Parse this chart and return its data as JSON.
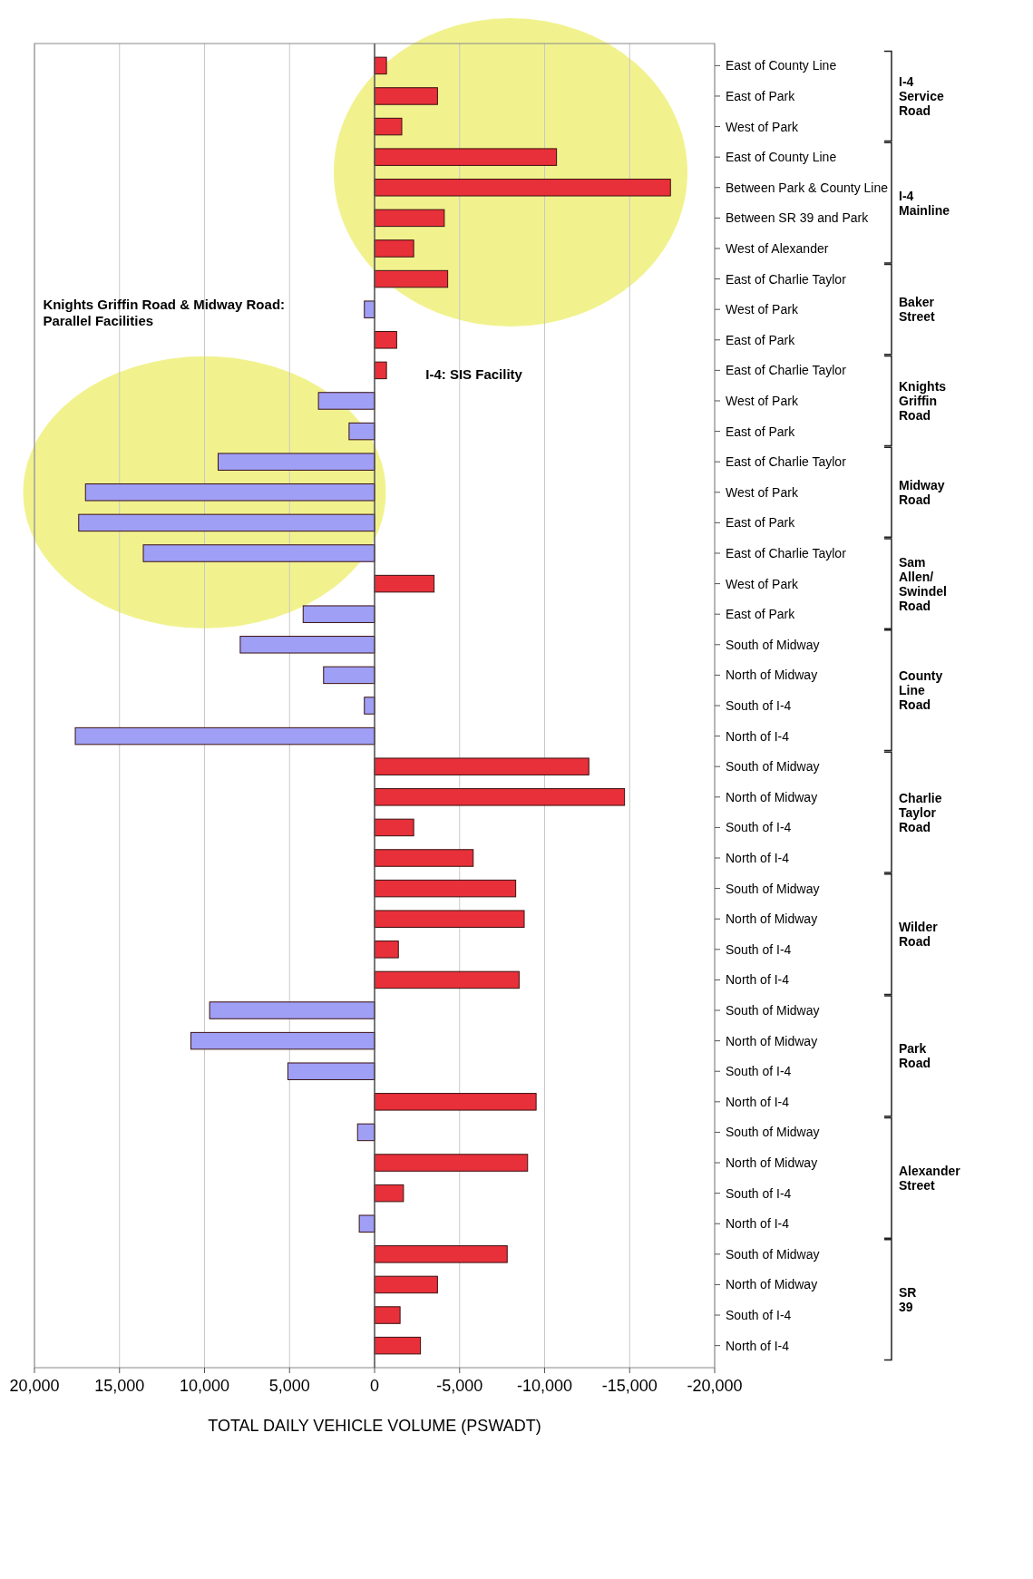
{
  "chart_data": {
    "type": "bar",
    "orientation": "horizontal",
    "xlabel": "TOTAL DAILY VEHICLE VOLUME (PSWADT)",
    "categories": [
      "East of County Line",
      "East of Park",
      "West of Park",
      "East of County Line",
      "Between Park & County Line",
      "Between SR 39 and Park",
      "West of Alexander",
      "East of Charlie Taylor",
      "West of Park",
      "East of Park",
      "East of Charlie Taylor",
      "West of Park",
      "East of Park",
      "East of Charlie Taylor",
      "West of Park",
      "East of Park",
      "East of Charlie Taylor",
      "West of Park",
      "East of Park",
      "South of Midway",
      "North of Midway",
      "South of I-4",
      "North of I-4",
      "South of Midway",
      "North of Midway",
      "South of I-4",
      "North of I-4",
      "South of Midway",
      "North of Midway",
      "South of I-4",
      "North of I-4",
      "South of Midway",
      "North of Midway",
      "South of I-4",
      "North of I-4",
      "South of Midway",
      "North of Midway",
      "South of I-4",
      "North of I-4",
      "South of Midway",
      "North of Midway",
      "South of I-4",
      "North of I-4"
    ],
    "values": [
      -700,
      -3700,
      -1600,
      -10700,
      -17400,
      -4100,
      -2300,
      -4300,
      600,
      -1300,
      -700,
      3300,
      1500,
      9200,
      17000,
      17400,
      13600,
      -3500,
      4200,
      7900,
      3000,
      600,
      17600,
      -12600,
      -14700,
      -2300,
      -5800,
      -8300,
      -8800,
      -1400,
      -8500,
      9700,
      10800,
      5100,
      -9500,
      1000,
      -9000,
      -1700,
      900,
      -7800,
      -3700,
      -1500,
      -2700
    ],
    "colors": [
      "#e8303a",
      "#e8303a",
      "#e8303a",
      "#e8303a",
      "#e8303a",
      "#e8303a",
      "#e8303a",
      "#e8303a",
      "#9f9ff5",
      "#e8303a",
      "#e8303a",
      "#9f9ff5",
      "#9f9ff5",
      "#9f9ff5",
      "#9f9ff5",
      "#9f9ff5",
      "#9f9ff5",
      "#e8303a",
      "#9f9ff5",
      "#9f9ff5",
      "#9f9ff5",
      "#9f9ff5",
      "#9f9ff5",
      "#e8303a",
      "#e8303a",
      "#e8303a",
      "#e8303a",
      "#e8303a",
      "#e8303a",
      "#e8303a",
      "#e8303a",
      "#9f9ff5",
      "#9f9ff5",
      "#9f9ff5",
      "#e8303a",
      "#9f9ff5",
      "#e8303a",
      "#e8303a",
      "#9f9ff5",
      "#e8303a",
      "#e8303a",
      "#e8303a",
      "#e8303a"
    ],
    "xlim": [
      20000,
      -20000
    ],
    "xticks": [
      {
        "value": 20000,
        "label": "20,000"
      },
      {
        "value": 15000,
        "label": "15,000"
      },
      {
        "value": 10000,
        "label": "10,000"
      },
      {
        "value": 5000,
        "label": "5,000"
      },
      0,
      {
        "value": -5000,
        "label": "-5,000"
      },
      {
        "value": -10000,
        "label": "-10,000"
      },
      {
        "value": -15000,
        "label": "-15,000"
      },
      {
        "value": -20000,
        "label": "-20,000"
      }
    ],
    "grid": true,
    "annotations": [
      "I-4 Service Road",
      "I-4 Mainline",
      "Baker Street",
      "Knights Griffin Road",
      "Midway Road",
      "Sam Allen/ Swindel Road",
      "County Line Road",
      "Charlie Taylor Road",
      "Wilder Road",
      "Park Road",
      "Alexander Street",
      "SR 39",
      "Knights Griffin Road & Midway Road: Parallel Facilities",
      "I-4: SIS Facility"
    ]
  }
}
